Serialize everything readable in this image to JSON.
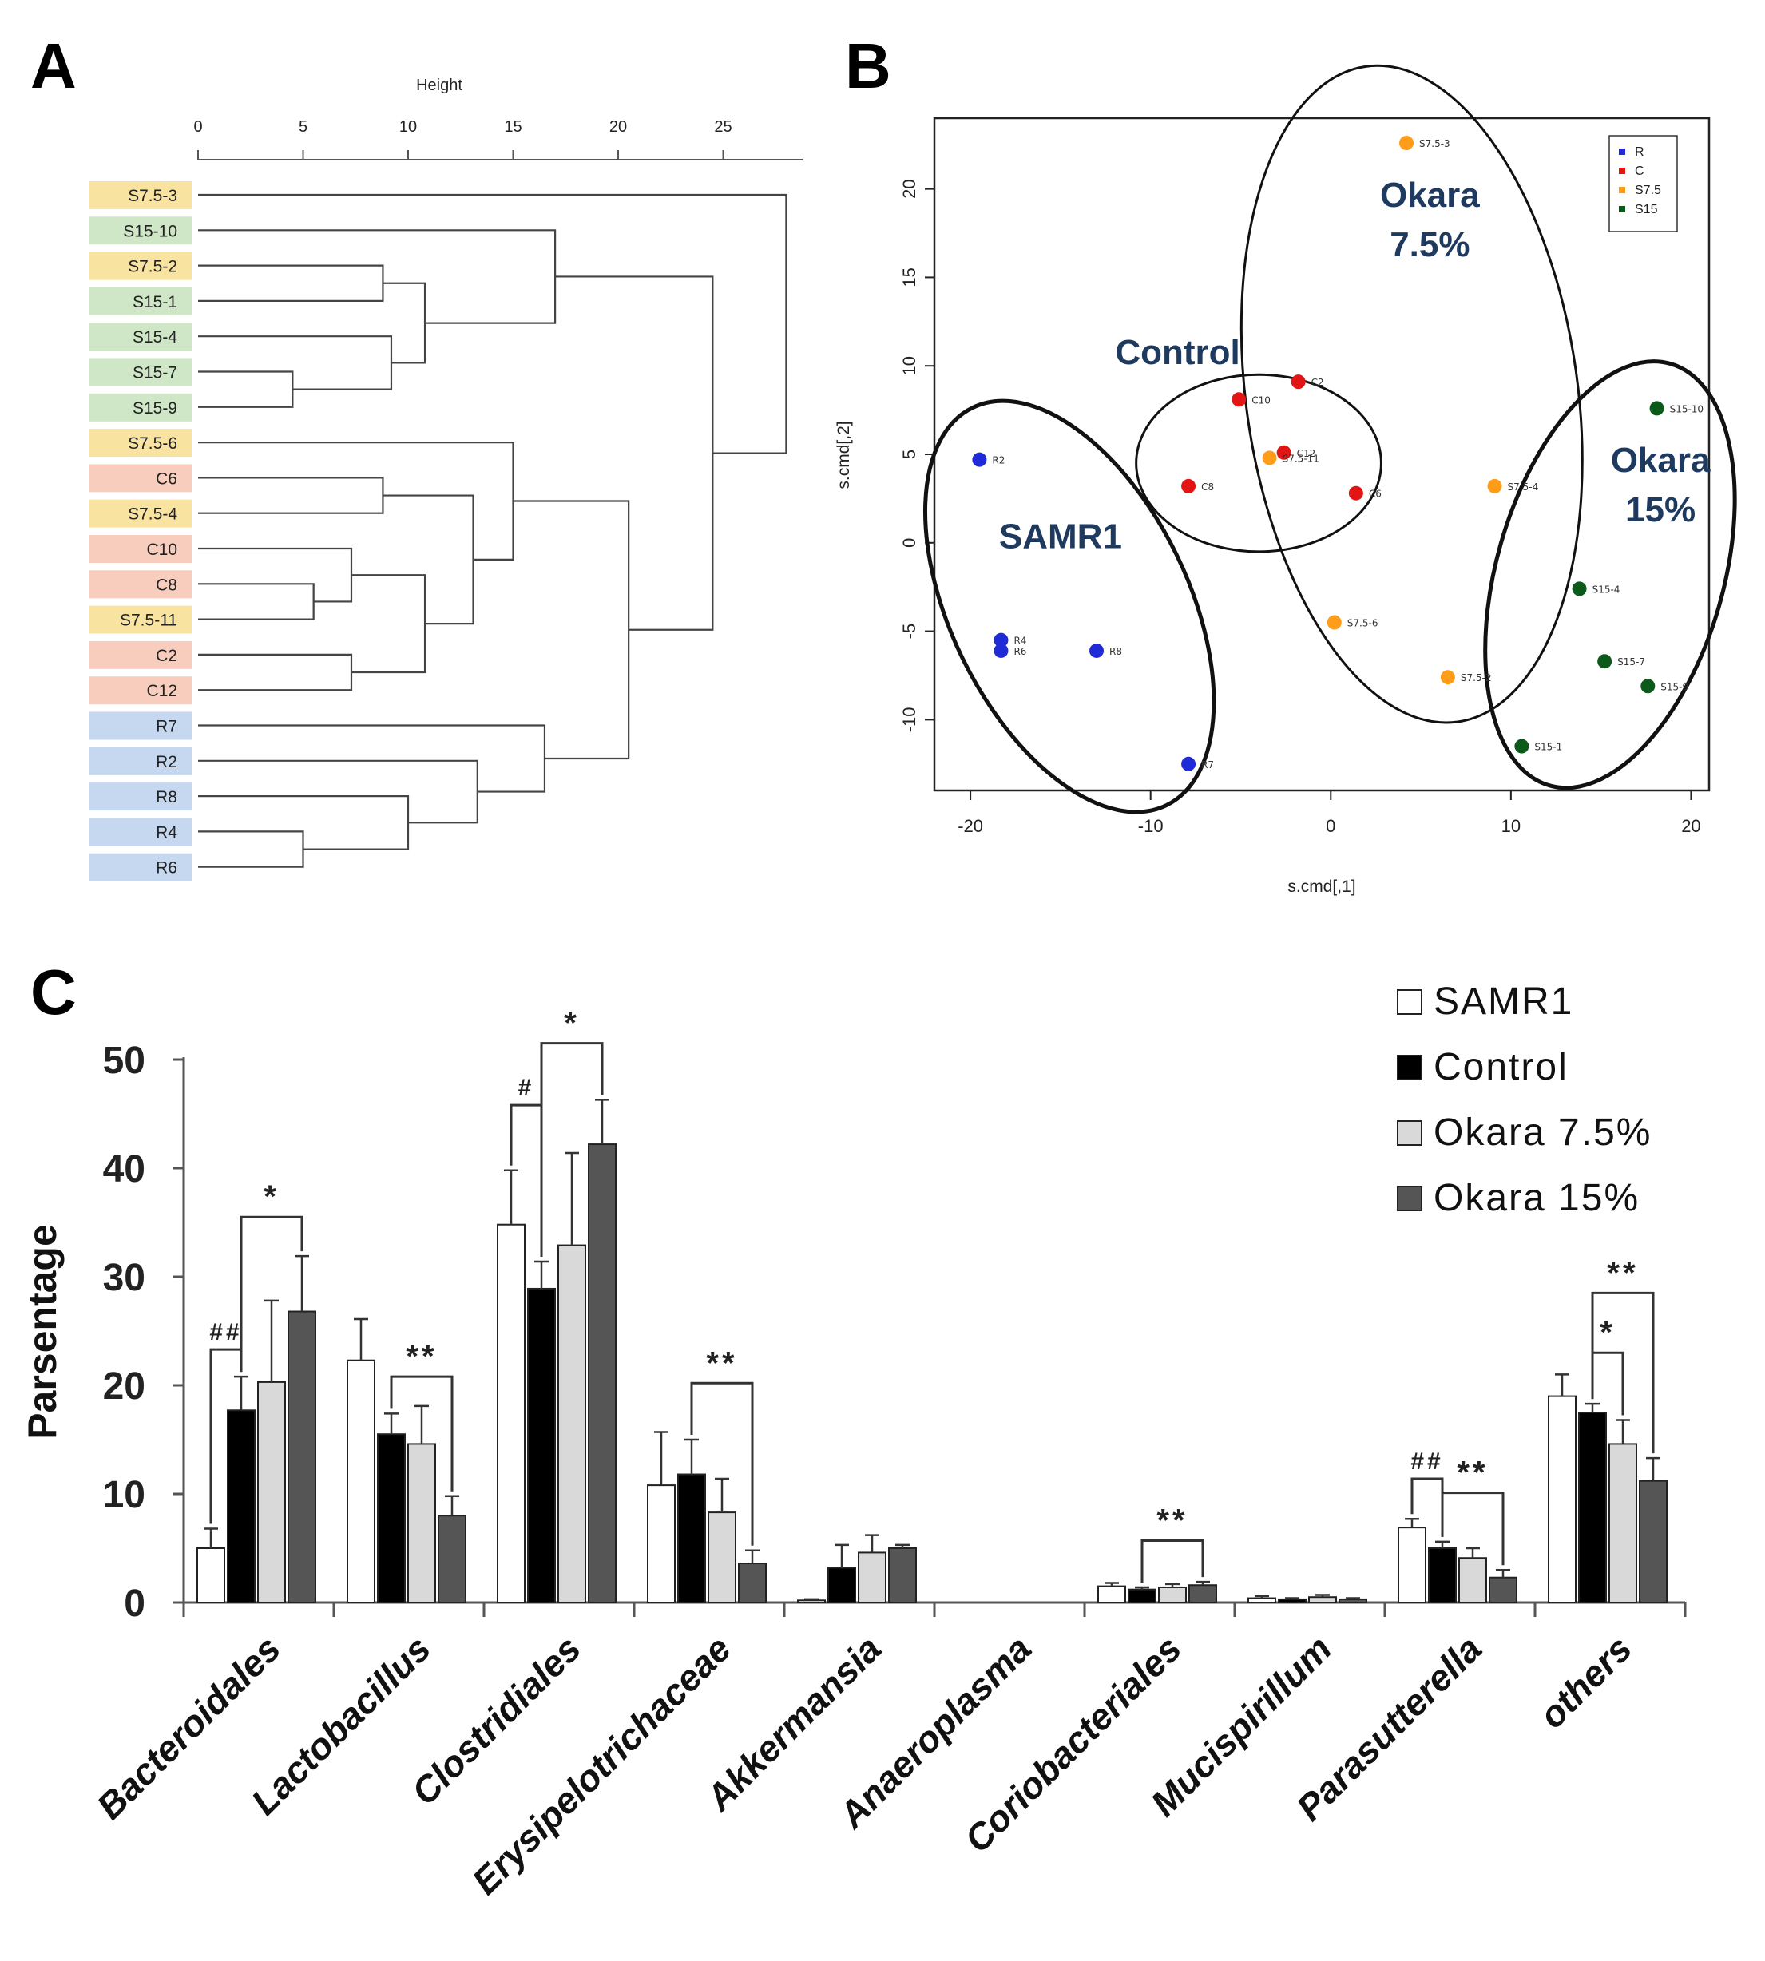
{
  "panel_labels": {
    "a": "A",
    "b": "B",
    "c": "C"
  },
  "colors": {
    "s75_label_bg": "#f9e3a1",
    "s15_label_bg": "#cfe6c7",
    "c_label_bg": "#f8cdbd",
    "r_label_bg": "#c6d8ef",
    "r_point": "#1f2bd6",
    "c_point": "#e31414",
    "s75_point": "#ff9c1a",
    "s15_point": "#0b5a1a",
    "samr1_bar": "#ffffff",
    "control_bar": "#000000",
    "okara75_bar": "#d9d9d9",
    "okara15_bar": "#555555"
  },
  "chart_data": [
    {
      "type": "dendrogram",
      "panel": "A",
      "axis_label": "Height",
      "ticks": [
        0,
        5,
        10,
        15,
        20,
        25
      ],
      "xlim": [
        0,
        29
      ],
      "leaves": [
        {
          "label": "S7.5-3",
          "group": "s75"
        },
        {
          "label": "S15-10",
          "group": "s15"
        },
        {
          "label": "S7.5-2",
          "group": "s75"
        },
        {
          "label": "S15-1",
          "group": "s15"
        },
        {
          "label": "S15-4",
          "group": "s15"
        },
        {
          "label": "S15-7",
          "group": "s15"
        },
        {
          "label": "S15-9",
          "group": "s15"
        },
        {
          "label": "S7.5-6",
          "group": "s75"
        },
        {
          "label": "C6",
          "group": "c"
        },
        {
          "label": "S7.5-4",
          "group": "s75"
        },
        {
          "label": "C10",
          "group": "c"
        },
        {
          "label": "C8",
          "group": "c"
        },
        {
          "label": "S7.5-11",
          "group": "s75"
        },
        {
          "label": "C2",
          "group": "c"
        },
        {
          "label": "C12",
          "group": "c"
        },
        {
          "label": "R7",
          "group": "r"
        },
        {
          "label": "R2",
          "group": "r"
        },
        {
          "label": "R8",
          "group": "r"
        },
        {
          "label": "R4",
          "group": "r"
        },
        {
          "label": "R6",
          "group": "r"
        }
      ],
      "merges": [
        {
          "id": "n1",
          "a": 5,
          "b": 6,
          "h": 4.5
        },
        {
          "id": "n2",
          "a": 11,
          "b": 12,
          "h": 5.5
        },
        {
          "id": "n3",
          "a": 18,
          "b": 19,
          "h": 5.0
        },
        {
          "id": "n4",
          "a": 2,
          "b": 3,
          "h": 8.8
        },
        {
          "id": "n5",
          "a": 8,
          "b": 9,
          "h": 8.8
        },
        {
          "id": "n6",
          "a": 4,
          "b": "n1",
          "h": 9.2
        },
        {
          "id": "n7",
          "a": "n4",
          "b": "n6",
          "h": 10.8
        },
        {
          "id": "n8",
          "a": 10,
          "b": "n2",
          "h": 7.3
        },
        {
          "id": "n9",
          "a": 13,
          "b": 14,
          "h": 7.3
        },
        {
          "id": "n10",
          "a": "n8",
          "b": "n9",
          "h": 10.8
        },
        {
          "id": "n11",
          "a": "n10",
          "b": "n5",
          "h": 13.1
        },
        {
          "id": "n12",
          "a": 7,
          "b": "n11",
          "h": 15.0
        },
        {
          "id": "n13",
          "a": 17,
          "b": "n3",
          "h": 10.0
        },
        {
          "id": "n14",
          "a": 16,
          "b": "n13",
          "h": 13.3
        },
        {
          "id": "n15",
          "a": 15,
          "b": "n14",
          "h": 16.5
        },
        {
          "id": "n16",
          "a": "n12",
          "b": "n15",
          "h": 20.5
        },
        {
          "id": "n17",
          "a": 1,
          "b": "n7",
          "h": 17.0
        },
        {
          "id": "n18",
          "a": "n17",
          "b": "n16",
          "h": 24.5
        },
        {
          "id": "n19",
          "a": 0,
          "b": "n18",
          "h": 28.0
        }
      ]
    },
    {
      "type": "scatter",
      "panel": "B",
      "xlabel": "s.cmd[,1]",
      "ylabel": "s.cmd[,2]",
      "xlim": [
        -22,
        21
      ],
      "ylim": [
        -14,
        24
      ],
      "xticks": [
        -20,
        -10,
        0,
        10,
        20
      ],
      "yticks": [
        -10,
        -5,
        0,
        5,
        10,
        15,
        20
      ],
      "legend": {
        "position": "top-right",
        "entries": [
          "R",
          "C",
          "S7.5",
          "S15"
        ]
      },
      "series": [
        {
          "name": "R",
          "color_key": "r_point",
          "points": [
            {
              "x": -19.5,
              "y": 4.7,
              "label": "R2"
            },
            {
              "x": -18.3,
              "y": -5.5,
              "label": "R4"
            },
            {
              "x": -18.3,
              "y": -6.1,
              "label": "R6"
            },
            {
              "x": -13,
              "y": -6.1,
              "label": "R8"
            },
            {
              "x": -7.9,
              "y": -12.5,
              "label": "R7"
            }
          ]
        },
        {
          "name": "C",
          "color_key": "c_point",
          "points": [
            {
              "x": -1.8,
              "y": 9.1,
              "label": "C2"
            },
            {
              "x": -5.1,
              "y": 8.1,
              "label": "C10"
            },
            {
              "x": -2.6,
              "y": 5.1,
              "label": "C12"
            },
            {
              "x": -7.9,
              "y": 3.2,
              "label": "C8"
            },
            {
              "x": 1.4,
              "y": 2.8,
              "label": "C6"
            }
          ]
        },
        {
          "name": "S7.5",
          "color_key": "s75_point",
          "points": [
            {
              "x": 4.2,
              "y": 22.6,
              "label": "S7.5-3"
            },
            {
              "x": -3.4,
              "y": 4.8,
              "label": "S7.5-11"
            },
            {
              "x": 9.1,
              "y": 3.2,
              "label": "S7.5-4"
            },
            {
              "x": 0.2,
              "y": -4.5,
              "label": "S7.5-6"
            },
            {
              "x": 6.5,
              "y": -7.6,
              "label": "S7.5-2"
            }
          ]
        },
        {
          "name": "S15",
          "color_key": "s15_point",
          "points": [
            {
              "x": 18.1,
              "y": 7.6,
              "label": "S15-10"
            },
            {
              "x": 13.8,
              "y": -2.6,
              "label": "S15-4"
            },
            {
              "x": 15.2,
              "y": -6.7,
              "label": "S15-7"
            },
            {
              "x": 17.6,
              "y": -8.1,
              "label": "S15-9"
            },
            {
              "x": 10.6,
              "y": -11.5,
              "label": "S15-1"
            }
          ]
        }
      ],
      "annotations": [
        {
          "text_lines": [
            "Okara",
            "7.5%"
          ],
          "x": 5.5,
          "y": 19.0,
          "color": "#1f3a5f"
        },
        {
          "text_lines": [
            "Control"
          ],
          "x": -8.5,
          "y": 10.1,
          "color": "#1f3a5f"
        },
        {
          "text_lines": [
            "SAMR1"
          ],
          "x": -15,
          "y": -0.3,
          "color": "#1f3a5f"
        },
        {
          "text_lines": [
            "Okara",
            "15%"
          ],
          "x": 18.3,
          "y": 4.0,
          "color": "#1f3a5f"
        }
      ],
      "ellipses": [
        {
          "cx": 4.5,
          "cy": 8.4,
          "rx": 9.2,
          "ry": 18.7,
          "rotate": -8,
          "bold": false
        },
        {
          "cx": -4,
          "cy": 4.5,
          "rx": 6.8,
          "ry": 5.0,
          "rotate": 0,
          "bold": false
        },
        {
          "cx": -14.5,
          "cy": -3.6,
          "rx": 6.6,
          "ry": 12.5,
          "rotate": -26,
          "bold": true
        },
        {
          "cx": 15.5,
          "cy": -1.8,
          "rx": 6.3,
          "ry": 12.4,
          "rotate": 16,
          "bold": true
        }
      ]
    },
    {
      "type": "bar",
      "panel": "C",
      "ylabel": "Parsentage",
      "ylim": [
        0,
        50
      ],
      "yticks": [
        0,
        10,
        20,
        30,
        40,
        50
      ],
      "categories": [
        "Bacteroidales",
        "Lactobacillus",
        "Clostridiales",
        "Erysipelotrichaceae",
        "Akkermansia",
        "Anaeroplasma",
        "Coriobacteriales",
        "Mucispirillum",
        "Parasutterella",
        "others"
      ],
      "legend": {
        "position": "top-right"
      },
      "series": [
        {
          "name": "SAMR1",
          "color_key": "samr1_bar",
          "values": [
            5.0,
            22.3,
            34.8,
            10.8,
            0.2,
            0.0,
            1.5,
            0.4,
            6.9,
            19.0
          ],
          "errors": [
            1.8,
            3.8,
            5.0,
            4.9,
            0.1,
            0.0,
            0.3,
            0.2,
            0.8,
            2.0
          ]
        },
        {
          "name": "Control",
          "color_key": "control_bar",
          "values": [
            17.7,
            15.5,
            28.9,
            11.8,
            3.2,
            0.0,
            1.2,
            0.3,
            5.0,
            17.5
          ],
          "errors": [
            3.1,
            1.9,
            2.5,
            3.2,
            2.1,
            0.0,
            0.2,
            0.1,
            0.6,
            0.8
          ]
        },
        {
          "name": "Okara 7.5%",
          "color_key": "okara75_bar",
          "values": [
            20.3,
            14.6,
            32.9,
            8.3,
            4.6,
            0.0,
            1.4,
            0.5,
            4.1,
            14.6
          ],
          "errors": [
            7.5,
            3.5,
            8.5,
            3.1,
            1.6,
            0.0,
            0.3,
            0.2,
            0.9,
            2.2
          ]
        },
        {
          "name": "Okara 15%",
          "color_key": "okara15_bar",
          "values": [
            26.8,
            8.0,
            42.2,
            3.6,
            5.0,
            0.0,
            1.6,
            0.3,
            2.3,
            11.2
          ],
          "errors": [
            5.1,
            1.8,
            4.1,
            1.2,
            0.3,
            0.0,
            0.3,
            0.1,
            0.7,
            2.1
          ]
        }
      ],
      "significance": [
        {
          "cat": 0,
          "from": 0,
          "to": 1,
          "label": "##",
          "y": 23.3
        },
        {
          "cat": 0,
          "from": 1,
          "to": 3,
          "label": "*",
          "y": 35.5
        },
        {
          "cat": 1,
          "from": 1,
          "to": 3,
          "label": "**",
          "y": 20.8
        },
        {
          "cat": 2,
          "from": 0,
          "to": 1,
          "label": "#",
          "y": 45.8
        },
        {
          "cat": 2,
          "from": 1,
          "to": 3,
          "label": "*",
          "y": 51.5
        },
        {
          "cat": 3,
          "from": 1,
          "to": 3,
          "label": "**",
          "y": 20.2
        },
        {
          "cat": 6,
          "from": 1,
          "to": 3,
          "label": "**",
          "y": 5.7
        },
        {
          "cat": 8,
          "from": 0,
          "to": 1,
          "label": "##",
          "y": 11.4
        },
        {
          "cat": 8,
          "from": 1,
          "to": 3,
          "label": "**",
          "y": 10.1
        },
        {
          "cat": 9,
          "from": 1,
          "to": 2,
          "label": "*",
          "y": 23.0
        },
        {
          "cat": 9,
          "from": 1,
          "to": 3,
          "label": "**",
          "y": 28.5
        }
      ]
    }
  ]
}
